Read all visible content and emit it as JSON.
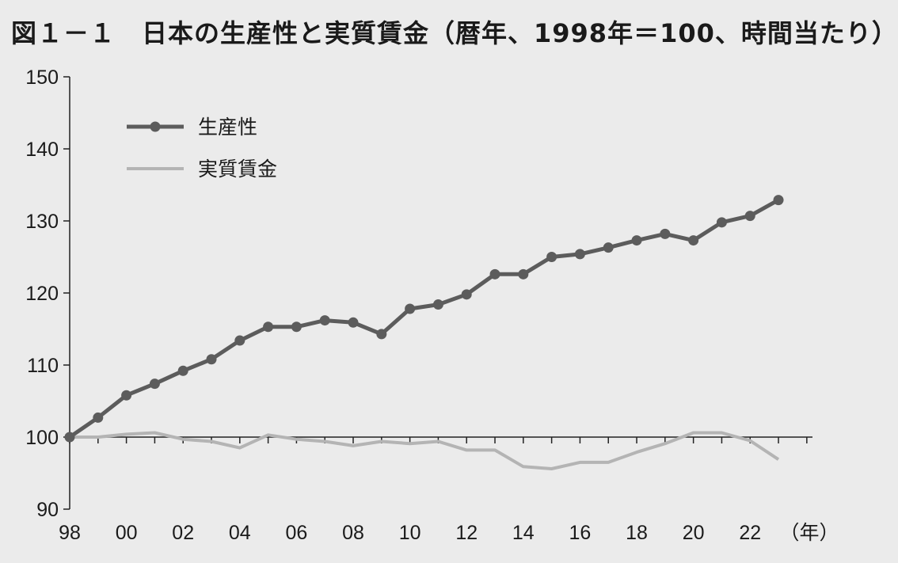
{
  "chart_data": {
    "type": "line",
    "title": "図１－１　日本の生産性と実質賃金（暦年、1998年＝100、時間当たり）",
    "xlabel": "（年）",
    "ylabel": "",
    "x": [
      1998,
      1999,
      2000,
      2001,
      2002,
      2003,
      2004,
      2005,
      2006,
      2007,
      2008,
      2009,
      2010,
      2011,
      2012,
      2013,
      2014,
      2015,
      2016,
      2017,
      2018,
      2019,
      2020,
      2021,
      2022,
      2023
    ],
    "x_tick_labels": [
      "98",
      "00",
      "02",
      "04",
      "06",
      "08",
      "10",
      "12",
      "14",
      "16",
      "18",
      "20",
      "22"
    ],
    "y_ticks": [
      90,
      100,
      110,
      120,
      130,
      140,
      150
    ],
    "ylim": [
      90,
      150
    ],
    "xlim": [
      1998,
      2023
    ],
    "grid": false,
    "legend_position": "top-left",
    "series": [
      {
        "name": "生産性",
        "color": "#5c5c5c",
        "marker": "circle",
        "values": [
          100.0,
          102.7,
          105.8,
          107.4,
          109.2,
          110.8,
          113.4,
          115.3,
          115.3,
          116.2,
          115.9,
          114.3,
          117.8,
          118.4,
          119.8,
          122.6,
          122.6,
          125.0,
          125.4,
          126.3,
          127.3,
          128.2,
          127.3,
          129.8,
          130.7,
          132.9
        ]
      },
      {
        "name": "実質賃金",
        "color": "#b4b4b4",
        "marker": "none",
        "values": [
          100.0,
          100.0,
          100.4,
          100.6,
          99.7,
          99.4,
          98.5,
          100.3,
          99.7,
          99.4,
          98.8,
          99.4,
          99.1,
          99.4,
          98.2,
          98.2,
          95.9,
          95.6,
          96.5,
          96.5,
          97.9,
          99.1,
          100.6,
          100.6,
          99.5,
          96.9
        ]
      }
    ]
  }
}
